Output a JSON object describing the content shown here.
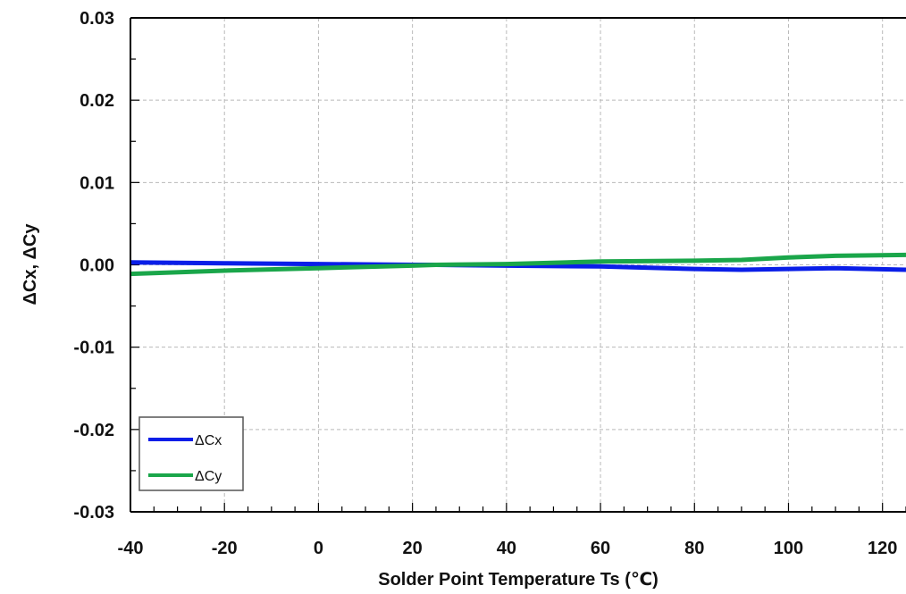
{
  "chart_data": {
    "type": "line",
    "xlabel": "Solder Point Temperature  Ts (℃)",
    "ylabel": "ΔCx, ΔCy",
    "xlim": [
      -40,
      125
    ],
    "ylim": [
      -0.03,
      0.03
    ],
    "x_ticks": [
      {
        "value": -40,
        "label": "-40"
      },
      {
        "value": -20,
        "label": "-20"
      },
      {
        "value": 0,
        "label": "0"
      },
      {
        "value": 20,
        "label": "20"
      },
      {
        "value": 40,
        "label": "40"
      },
      {
        "value": 60,
        "label": "60"
      },
      {
        "value": 80,
        "label": "80"
      },
      {
        "value": 100,
        "label": "100"
      },
      {
        "value": 120,
        "label": "120"
      }
    ],
    "y_ticks": [
      {
        "value": 0.03,
        "label": "0.03"
      },
      {
        "value": 0.02,
        "label": "0.02"
      },
      {
        "value": 0.01,
        "label": "0.01"
      },
      {
        "value": 0.0,
        "label": "0.00"
      },
      {
        "value": -0.01,
        "label": "-0.01"
      },
      {
        "value": -0.02,
        "label": "-0.02"
      },
      {
        "value": -0.03,
        "label": "-0.03"
      }
    ],
    "grid": true,
    "legend_position": "bottom-left",
    "series": [
      {
        "name": "ΔCx",
        "color": "#0a1ee8",
        "x": [
          -40,
          -20,
          0,
          20,
          25,
          40,
          60,
          80,
          90,
          100,
          110,
          125
        ],
        "y": [
          0.0003,
          0.0002,
          0.0001,
          0.0,
          0.0,
          -0.0001,
          -0.0002,
          -0.0005,
          -0.0006,
          -0.0005,
          -0.0004,
          -0.0006
        ]
      },
      {
        "name": "ΔCy",
        "color": "#1aa64a",
        "x": [
          -40,
          -20,
          0,
          20,
          25,
          40,
          60,
          80,
          90,
          100,
          110,
          125
        ],
        "y": [
          -0.0011,
          -0.0007,
          -0.0004,
          -0.0001,
          0.0,
          0.0001,
          0.0004,
          0.0005,
          0.0006,
          0.0009,
          0.0011,
          0.0012
        ]
      }
    ]
  }
}
